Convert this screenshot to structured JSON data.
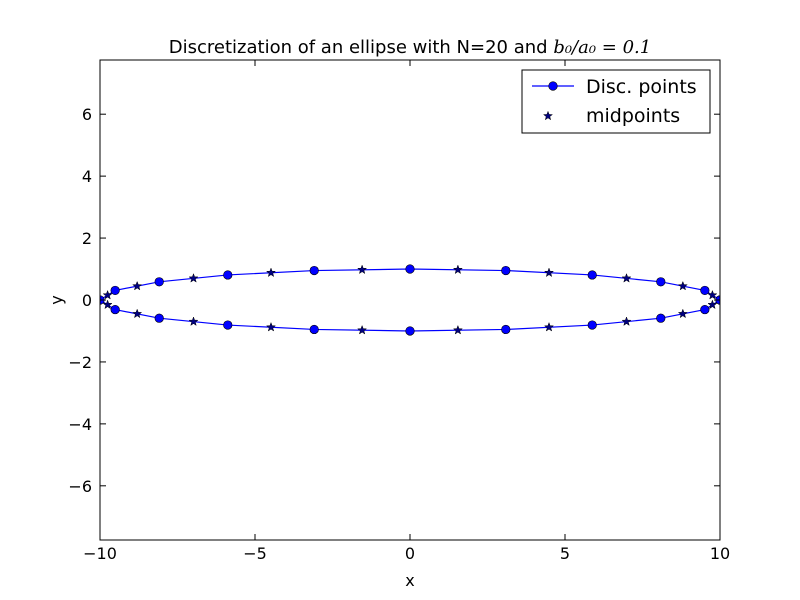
{
  "chart_data": {
    "type": "line",
    "title": "Discretization of an ellipse with N=20 and ",
    "title_math": "b₀/a₀ = 0.1",
    "xlabel": "x",
    "ylabel": "y",
    "xlim": [
      -10,
      10
    ],
    "ylim": [
      -7.75,
      7.75
    ],
    "xticks": [
      -10,
      -5,
      0,
      5,
      10
    ],
    "yticks": [
      -6,
      -4,
      -2,
      0,
      2,
      4,
      6
    ],
    "xtick_labels": [
      "−10",
      "−5",
      "0",
      "5",
      "10"
    ],
    "ytick_labels": [
      "−6",
      "−4",
      "−2",
      "0",
      "2",
      "4",
      "6"
    ],
    "grid": false,
    "legend_position": "top-right",
    "series": [
      {
        "name": "Disc. points",
        "style": "line-with-circle-markers",
        "color": "#0000ff",
        "x": [
          10.0,
          9.511,
          8.09,
          5.878,
          3.09,
          0.0,
          -3.09,
          -5.878,
          -8.09,
          -9.511,
          -10.0,
          -9.511,
          -8.09,
          -5.878,
          -3.09,
          0.0,
          3.09,
          5.878,
          8.09,
          9.511,
          10.0
        ],
        "y": [
          0.0,
          0.309,
          0.588,
          0.809,
          0.951,
          1.0,
          0.951,
          0.809,
          0.588,
          0.309,
          0.0,
          -0.309,
          -0.588,
          -0.809,
          -0.951,
          -1.0,
          -0.951,
          -0.809,
          -0.588,
          -0.309,
          0.0
        ]
      },
      {
        "name": "midpoints",
        "style": "star-markers",
        "color": "#000080",
        "x": [
          9.755,
          8.801,
          6.984,
          4.484,
          1.545,
          -1.545,
          -4.484,
          -6.984,
          -8.801,
          -9.755,
          -9.755,
          -8.801,
          -6.984,
          -4.484,
          -1.545,
          1.545,
          4.484,
          6.984,
          8.801,
          9.755
        ],
        "y": [
          0.155,
          0.448,
          0.699,
          0.88,
          0.976,
          0.976,
          0.88,
          0.699,
          0.448,
          0.155,
          -0.155,
          -0.448,
          -0.699,
          -0.88,
          -0.976,
          -0.976,
          -0.88,
          -0.699,
          -0.448,
          -0.155
        ]
      }
    ]
  }
}
